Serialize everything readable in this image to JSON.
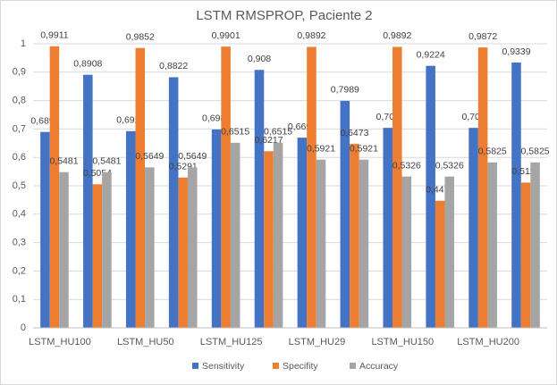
{
  "chart_data": {
    "type": "bar",
    "title": "LSTM RMSPROP, Paciente 2",
    "categories": [
      "LSTM_HU100",
      null,
      "LSTM_HU50",
      null,
      "LSTM_HU125",
      null,
      "LSTM_HU29",
      null,
      "LSTM_HU150",
      null,
      "LSTM_HU200",
      null
    ],
    "series": [
      {
        "name": "Sensitivity",
        "color": "#4472c4",
        "values": [
          0.6897,
          0.8908,
          0.6925,
          0.8822,
          0.6983,
          0.908,
          0.6695,
          0.7989,
          0.704,
          0.9224,
          0.704,
          0.9339
        ],
        "value_labels": [
          "0,6897",
          "0,8908",
          "0,6925",
          "0,8822",
          "0,6983",
          "0,908",
          "0,6695",
          "0,7989",
          "0,704",
          "0,9224",
          "0,704",
          "0,9339"
        ]
      },
      {
        "name": "Specifity",
        "color": "#ed7d31",
        "values": [
          0.9911,
          0.5054,
          0.9852,
          0.5291,
          0.9901,
          0.6217,
          0.9892,
          0.6473,
          0.9892,
          0.4473,
          0.9872,
          0.5113
        ],
        "value_labels": [
          "0,9911",
          "0,5054",
          "0,9852",
          "0,5291",
          "0,9901",
          "0,6217",
          "0,9892",
          "0,6473",
          "0,9892",
          "0,4473",
          "0,9872",
          "0,5113"
        ]
      },
      {
        "name": "Accuracy",
        "color": "#a5a5a5",
        "values": [
          0.5481,
          0.5481,
          0.5649,
          0.5649,
          0.6515,
          0.6515,
          0.5921,
          0.5921,
          0.5326,
          0.5326,
          0.5825,
          0.5825
        ],
        "value_labels": [
          "0,5481",
          "0,5481",
          "0,5649",
          "0,5649",
          "0,6515",
          "0,6515",
          "0,5921",
          "0,5921",
          "0,5326",
          "0,5326",
          "0,5825",
          "0,5825"
        ]
      }
    ],
    "ylim": [
      0,
      1
    ],
    "yticks": [
      0,
      {
        "value": 0.1,
        "label": "0,1"
      },
      {
        "value": 0.2,
        "label": "0,2"
      },
      {
        "value": 0.3,
        "label": "0,3"
      },
      {
        "value": 0.4,
        "label": "0,4"
      },
      {
        "value": 0.5,
        "label": "0,5"
      },
      {
        "value": 0.6,
        "label": "0,6"
      },
      {
        "value": 0.7,
        "label": "0,7"
      },
      {
        "value": 0.8,
        "label": "0,8"
      },
      {
        "value": 0.9,
        "label": "0,9"
      },
      1
    ],
    "grid": true,
    "legend": "bottom"
  }
}
